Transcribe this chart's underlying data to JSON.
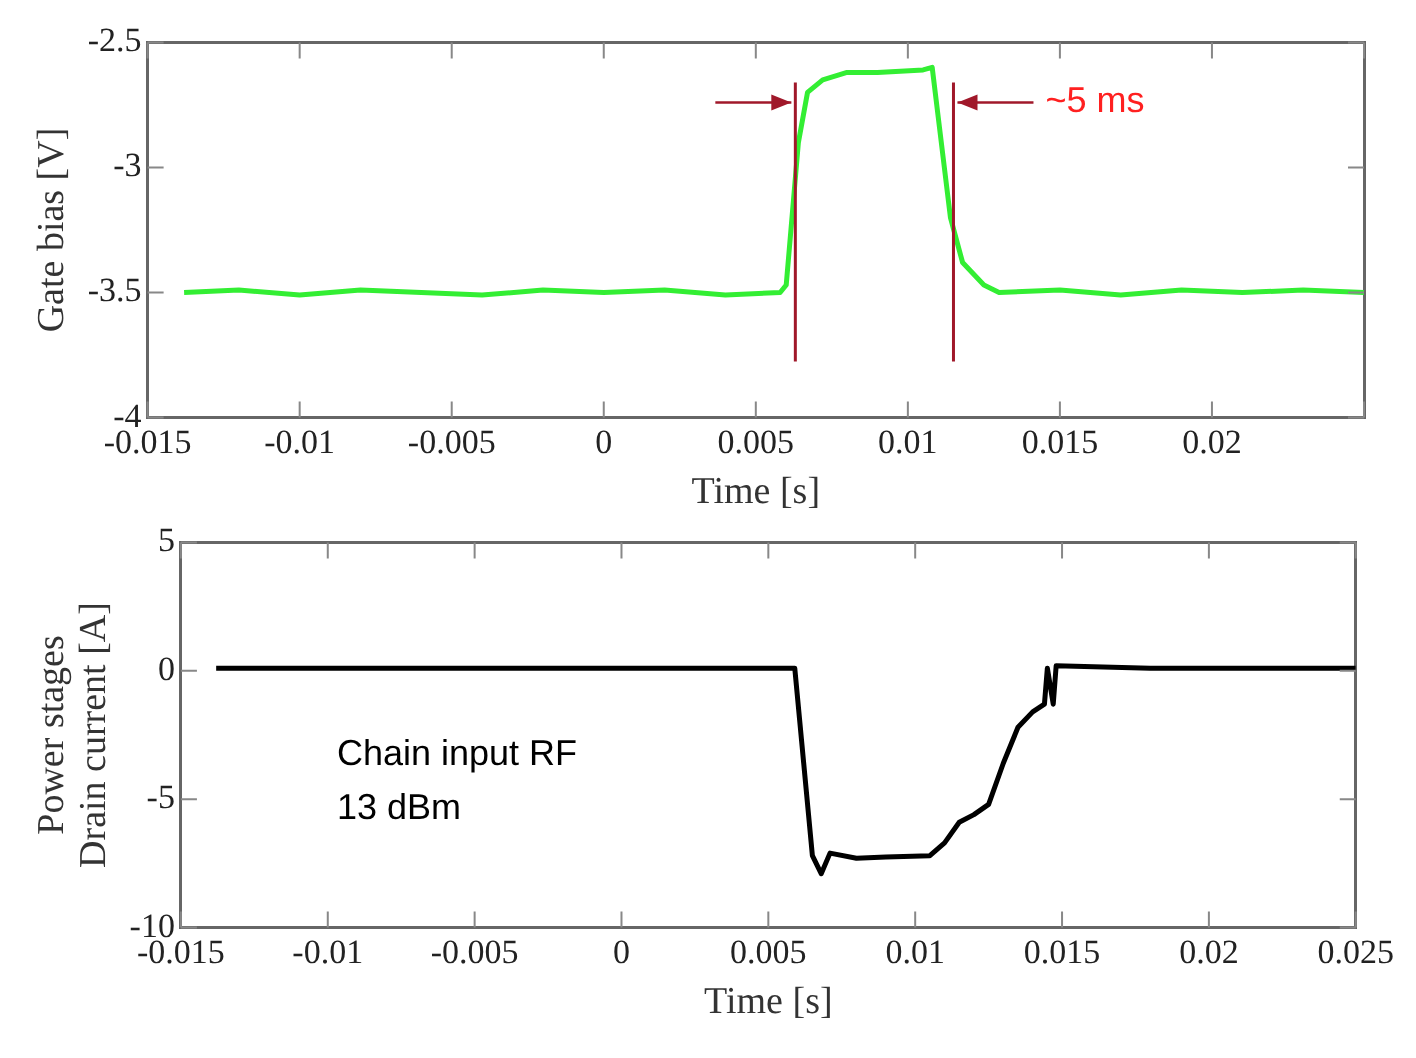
{
  "chart_data": [
    {
      "type": "line",
      "xlabel": "Time [s]",
      "ylabel": "Gate bias [V]",
      "xlim": [
        -0.015,
        0.025
      ],
      "ylim": [
        -4,
        -2.5
      ],
      "xticks": [
        -0.015,
        -0.01,
        -0.005,
        0,
        0.005,
        0.01,
        0.015,
        0.02,
        {
          "value": 0.025,
          "label": null
        }
      ],
      "yticks": [
        -4,
        -3.5,
        -3,
        -2.5
      ],
      "x": [
        -0.0138,
        -0.012,
        -0.01,
        -0.008,
        -0.006,
        -0.004,
        -0.002,
        0,
        0.002,
        0.004,
        0.0058,
        0.006,
        0.0064,
        0.0067,
        0.0072,
        0.008,
        0.009,
        0.0105,
        0.0108,
        0.011,
        0.0114,
        0.0118,
        0.0125,
        0.013,
        0.015,
        0.017,
        0.019,
        0.021,
        0.023,
        0.025
      ],
      "series": [
        {
          "color": "#33ee33",
          "values": [
            -3.5,
            -3.49,
            -3.51,
            -3.49,
            -3.5,
            -3.51,
            -3.49,
            -3.5,
            -3.49,
            -3.51,
            -3.5,
            -3.47,
            -2.9,
            -2.7,
            -2.65,
            -2.62,
            -2.62,
            -2.61,
            -2.6,
            -2.8,
            -3.2,
            -3.38,
            -3.47,
            -3.5,
            -3.49,
            -3.51,
            -3.49,
            -3.5,
            -3.49,
            -3.5
          ]
        }
      ],
      "ref_lines": [
        {
          "axis": "x",
          "value": 0.0063,
          "color": "#a0182a"
        },
        {
          "axis": "x",
          "value": 0.0115,
          "color": "#a0182a"
        }
      ],
      "annotations": [
        {
          "text": "~5 ms",
          "x": 0.0115,
          "y": -2.74
        }
      ],
      "marker": "none",
      "line_style": "solid",
      "legend": false,
      "grid": false
    },
    {
      "type": "line",
      "xlabel": "Time [s]",
      "ylabel": "Power stages\nDrain current [A]",
      "xlim": [
        -0.015,
        0.025
      ],
      "ylim": [
        -10,
        5
      ],
      "xticks": [
        -0.015,
        -0.01,
        -0.005,
        0,
        0.005,
        0.01,
        0.015,
        0.02,
        0.025
      ],
      "yticks": [
        -10,
        -5,
        0,
        5
      ],
      "x": [
        -0.0138,
        -0.01,
        -0.005,
        0,
        0.005,
        0.0059,
        0.0065,
        0.0068,
        0.0071,
        0.008,
        0.009,
        0.0105,
        0.011,
        0.0115,
        0.012,
        0.0125,
        0.013,
        0.0135,
        0.014,
        0.0144,
        0.0145,
        0.0147,
        0.0148,
        0.018,
        0.022,
        0.025
      ],
      "series": [
        {
          "color": "#000000",
          "values": [
            0.1,
            0.1,
            0.1,
            0.1,
            0.1,
            0.1,
            -7.2,
            -7.9,
            -7.1,
            -7.3,
            -7.25,
            -7.2,
            -6.7,
            -5.9,
            -5.6,
            -5.2,
            -3.6,
            -2.2,
            -1.6,
            -1.3,
            0.1,
            -1.3,
            0.2,
            0.1,
            0.1,
            0.1
          ]
        }
      ],
      "annotations": [
        "Chain input RF",
        "13 dBm"
      ],
      "marker": "none",
      "line_style": "solid",
      "legend": false,
      "grid": false
    }
  ]
}
